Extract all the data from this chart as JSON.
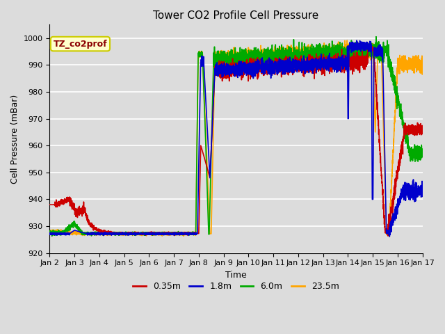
{
  "title": "Tower CO2 Profile Cell Pressure",
  "xlabel": "Time",
  "ylabel": "Cell Pressure (mBar)",
  "ylim": [
    920,
    1005
  ],
  "xlim_days": [
    2,
    17
  ],
  "annotation_text": "TZ_co2prof",
  "annotation_color": "#8B0000",
  "annotation_bg": "#FFFFCC",
  "annotation_border": "#CCCC00",
  "background_color": "#DCDCDC",
  "grid_color": "#FFFFFF",
  "series": {
    "0.35m": {
      "color": "#CC0000",
      "lw": 1.2
    },
    "1.8m": {
      "color": "#0000CC",
      "lw": 1.2
    },
    "6.0m": {
      "color": "#00AA00",
      "lw": 1.2
    },
    "23.5m": {
      "color": "#FFA500",
      "lw": 1.2
    }
  },
  "tick_labels": [
    "Jan 2",
    "Jan 3",
    "Jan 4",
    "Jan 5",
    "Jan 6",
    "Jan 7",
    "Jan 8",
    "Jan 9",
    "Jan 10",
    "Jan 11",
    "Jan 12",
    "Jan 13",
    "Jan 14",
    "Jan 15",
    "Jan 16",
    "Jan 17"
  ],
  "yticks": [
    920,
    930,
    940,
    950,
    960,
    970,
    980,
    990,
    1000
  ]
}
